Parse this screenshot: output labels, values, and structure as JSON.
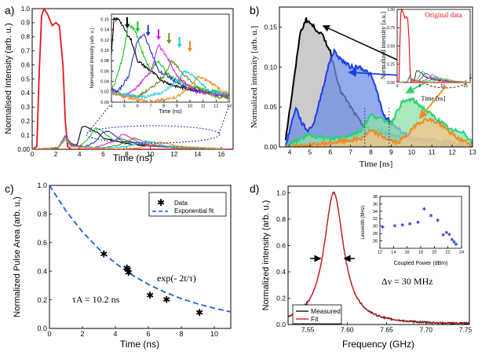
{
  "figure": {
    "panel_labels": [
      "a)",
      "b)",
      "c)",
      "d)"
    ]
  },
  "chart_data": [
    {
      "panel": "a)",
      "type": "line",
      "xlabel": "Time (ns)",
      "ylabel": "Normalised Intensity (arb. u.)",
      "xlim": [
        0,
        17
      ],
      "ylim": [
        0,
        1.0
      ],
      "xticks": [
        0,
        2,
        4,
        6,
        8,
        10,
        12,
        14,
        16
      ],
      "yticks": [
        0.0,
        0.1,
        0.2,
        0.3,
        0.4,
        0.5,
        0.6,
        0.7,
        0.8,
        0.9,
        1.0
      ],
      "ytick_labels": [
        "0.00",
        "0.1",
        "0.2",
        "0.3",
        "0.4",
        "0.5",
        "0.6",
        "0.7",
        "0.8",
        "0.9",
        "1.0"
      ],
      "series": [
        {
          "name": "input pulse",
          "color": "#e8141c",
          "x": [
            0,
            0.4,
            0.6,
            0.8,
            1.0,
            1.3,
            1.7,
            2.0,
            2.3,
            2.6,
            2.8,
            3.0,
            3.3,
            4.0,
            17
          ],
          "y": [
            0,
            0.02,
            0.55,
            0.95,
            1.0,
            0.96,
            0.88,
            0.9,
            0.88,
            0.6,
            0.2,
            0.02,
            0,
            0,
            0
          ]
        },
        {
          "name": "black",
          "color": "#000000",
          "x": [
            0,
            2.2,
            2.8,
            3.3,
            3.8,
            4.2,
            4.6,
            5.0,
            5.5,
            6.0,
            6.5,
            7.0,
            8.0,
            9.0,
            11.0,
            13.0,
            16.5
          ],
          "y": [
            0.0,
            0.01,
            0.1,
            0.04,
            0.03,
            0.16,
            0.16,
            0.14,
            0.12,
            0.08,
            0.07,
            0.06,
            0.04,
            0.03,
            0.02,
            0.01,
            0.0
          ]
        },
        {
          "name": "green",
          "color": "#1fc21f",
          "x": [
            0,
            2.2,
            2.8,
            3.3,
            4.0,
            4.8,
            5.3,
            5.8,
            6.3,
            7.0,
            7.5,
            8.5,
            10.0,
            12.0,
            16.5
          ],
          "y": [
            0.0,
            0.01,
            0.09,
            0.04,
            0.02,
            0.08,
            0.15,
            0.14,
            0.1,
            0.06,
            0.08,
            0.05,
            0.03,
            0.02,
            0.0
          ]
        },
        {
          "name": "blue",
          "color": "#2233cc",
          "x": [
            0,
            2.2,
            2.8,
            3.3,
            4.5,
            5.3,
            6.0,
            6.5,
            7.0,
            7.6,
            8.3,
            9.5,
            11.0,
            16.5
          ],
          "y": [
            0.0,
            0.01,
            0.08,
            0.03,
            0.02,
            0.05,
            0.12,
            0.13,
            0.1,
            0.06,
            0.05,
            0.03,
            0.02,
            0.0
          ]
        },
        {
          "name": "magenta",
          "color": "#e020e0",
          "x": [
            0,
            2.2,
            2.8,
            3.3,
            5.0,
            6.0,
            7.0,
            7.6,
            8.2,
            9.0,
            10.5,
            16.5
          ],
          "y": [
            0.0,
            0.01,
            0.1,
            0.03,
            0.01,
            0.03,
            0.06,
            0.11,
            0.09,
            0.05,
            0.02,
            0.0
          ]
        },
        {
          "name": "olive",
          "color": "#6b8e23",
          "x": [
            0,
            2.2,
            2.8,
            3.3,
            6.0,
            7.2,
            8.0,
            8.6,
            9.3,
            10.5,
            12.0,
            16.5
          ],
          "y": [
            0.0,
            0.01,
            0.09,
            0.02,
            0.01,
            0.03,
            0.05,
            0.08,
            0.06,
            0.03,
            0.01,
            0.0
          ]
        },
        {
          "name": "cyan",
          "color": "#22cce6",
          "x": [
            0,
            2.2,
            2.8,
            3.3,
            6.5,
            8.0,
            9.0,
            9.6,
            10.3,
            11.5,
            16.5
          ],
          "y": [
            0.0,
            0.01,
            0.08,
            0.02,
            0.01,
            0.02,
            0.04,
            0.06,
            0.05,
            0.02,
            0.0
          ]
        },
        {
          "name": "orange",
          "color": "#f08a1e",
          "x": [
            0,
            2.2,
            2.8,
            3.3,
            7.0,
            9.0,
            10.0,
            10.7,
            11.5,
            12.5,
            16.5
          ],
          "y": [
            0.0,
            0.01,
            0.07,
            0.02,
            0.0,
            0.01,
            0.03,
            0.05,
            0.04,
            0.02,
            0.0
          ]
        }
      ],
      "inset": {
        "xlabel": "Time (ns)",
        "ylabel": "Normalised Intensity (arb. u.)",
        "xlim": [
          4,
          13
        ],
        "ylim": [
          0,
          0.17
        ],
        "xticks": [
          4,
          5,
          6,
          7,
          8,
          9,
          10,
          11,
          12,
          13
        ],
        "yticks": [
          0.0,
          0.02,
          0.04,
          0.06,
          0.08,
          0.1,
          0.12,
          0.14,
          0.16
        ],
        "ytick_labels": [
          "0.00",
          "0.02",
          "0.04",
          "0.06",
          "0.08",
          "0.10",
          "0.12",
          "0.14",
          "0.16"
        ],
        "arrows_at_x": [
          5.2,
          6.0,
          6.8,
          7.6,
          8.4,
          9.2,
          10.0
        ]
      }
    },
    {
      "panel": "b)",
      "type": "area",
      "xlabel": "Time [ns]",
      "ylabel": "Normalized intensity [arb. u.]",
      "xlim": [
        3.5,
        13
      ],
      "ylim": [
        0,
        0.175
      ],
      "xticks": [
        4,
        5,
        6,
        7,
        8,
        9,
        10,
        11,
        12,
        13
      ],
      "yticks": [
        0.0,
        0.05,
        0.1,
        0.15
      ],
      "ytick_labels": [
        "0.00",
        "0.05",
        "0.10",
        "0.15"
      ],
      "series": [
        {
          "name": "black",
          "color": "#000000",
          "fill": "#b9b9b9",
          "x": [
            3.8,
            4.2,
            4.5,
            4.8,
            5.2,
            5.6,
            6.0,
            6.5,
            7.0,
            7.5,
            8.0,
            8.5,
            9.0,
            10.0,
            11.0,
            12.0,
            13.0
          ],
          "y": [
            0.01,
            0.08,
            0.14,
            0.16,
            0.15,
            0.14,
            0.12,
            0.07,
            0.05,
            0.03,
            0.02,
            0.02,
            0.015,
            0.01,
            0.008,
            0.005,
            0.0
          ]
        },
        {
          "name": "blue",
          "color": "#1a3ee8",
          "fill": "#6e8fe6",
          "x": [
            3.8,
            4.3,
            4.6,
            4.9,
            5.2,
            5.6,
            6.0,
            6.2,
            6.5,
            7.0,
            7.5,
            8.0,
            8.3,
            8.6,
            9.0,
            9.5,
            10.0,
            11.0,
            12.0,
            13.0
          ],
          "y": [
            0.0,
            0.05,
            0.03,
            0.02,
            0.03,
            0.07,
            0.11,
            0.12,
            0.11,
            0.1,
            0.1,
            0.09,
            0.07,
            0.04,
            0.03,
            0.02,
            0.01,
            0.005,
            0.002,
            0.0
          ]
        },
        {
          "name": "green",
          "color": "#2bd16e",
          "fill": "#8fe0a8",
          "x": [
            3.8,
            4.5,
            5.0,
            6.0,
            7.0,
            7.5,
            8.0,
            8.5,
            9.0,
            9.5,
            10.0,
            10.5,
            11.0,
            11.5,
            12.0,
            12.5,
            13.0
          ],
          "y": [
            0.0,
            0.01,
            0.015,
            0.01,
            0.015,
            0.02,
            0.04,
            0.035,
            0.03,
            0.055,
            0.06,
            0.05,
            0.04,
            0.03,
            0.02,
            0.02,
            0.005
          ]
        },
        {
          "name": "orange",
          "color": "#f08a1e",
          "fill": "#f7c48a",
          "x": [
            3.8,
            5.0,
            6.0,
            7.5,
            8.0,
            8.8,
            9.3,
            9.8,
            10.3,
            10.8,
            11.3,
            11.8,
            12.3,
            12.8,
            13.0
          ],
          "y": [
            0.0,
            0.002,
            0.005,
            0.01,
            0.02,
            0.01,
            0.005,
            0.015,
            0.03,
            0.035,
            0.03,
            0.02,
            0.01,
            0.005,
            0.0
          ]
        }
      ],
      "inset": {
        "xlabel": "Time [ns]",
        "ylabel": "Normalized intensity [a.u.]",
        "xlim": [
          0,
          16
        ],
        "ylim": [
          0,
          1.0
        ],
        "xticks": [
          0,
          5,
          10,
          15
        ],
        "yticks": [
          0.0,
          0.25,
          0.5,
          0.75,
          1.0
        ],
        "ytick_labels": [
          "0.00",
          "0.25",
          "0.50",
          "0.75",
          "1.00"
        ],
        "annotation": "Original data"
      }
    },
    {
      "panel": "c)",
      "type": "scatter",
      "xlabel": "Time (ns)",
      "ylabel": "Normalized  Pulse Area (arb. u.)",
      "xlim": [
        0,
        11
      ],
      "ylim": [
        0,
        1.0
      ],
      "xticks": [
        0,
        2,
        4,
        6,
        8,
        10
      ],
      "yticks": [
        0.0,
        0.2,
        0.4,
        0.6,
        0.8,
        1.0
      ],
      "ytick_labels": [
        "0.0",
        "0.2",
        "0.4",
        "0.6",
        "0.8",
        "1.0"
      ],
      "series": [
        {
          "name": "Data",
          "marker": "star",
          "x": [
            3.3,
            4.7,
            4.75,
            4.8,
            6.1,
            7.1,
            9.1
          ],
          "y": [
            0.52,
            0.42,
            0.41,
            0.39,
            0.23,
            0.2,
            0.11
          ]
        },
        {
          "name": "Exponential fit",
          "style": "dashed",
          "color": "#1f5fd6",
          "x": [
            0,
            1,
            2,
            3,
            4,
            5,
            6,
            7,
            8,
            9,
            10,
            11
          ],
          "y": [
            1.0,
            0.822,
            0.676,
            0.555,
            0.456,
            0.375,
            0.308,
            0.254,
            0.208,
            0.171,
            0.141,
            0.116
          ]
        }
      ],
      "legend": [
        "Data",
        "Exponential fit"
      ],
      "annotations": [
        "exp(- 2t/τ)",
        "τA = 10.2 ns"
      ]
    },
    {
      "panel": "d)",
      "type": "line",
      "xlabel": "Frequency (GHz)",
      "ylabel": "Normalized intensity (arb. u.)",
      "xlim": [
        7.525,
        7.755
      ],
      "ylim": [
        0,
        1.05
      ],
      "xticks": [
        7.55,
        7.6,
        7.65,
        7.7,
        7.75
      ],
      "xtick_labels": [
        "7.55",
        "7.60",
        "7.65",
        "7.70",
        "7.75"
      ],
      "yticks": [
        0.0,
        0.2,
        0.4,
        0.6,
        0.8,
        1.0
      ],
      "ytick_labels": [
        "0.0",
        "0.2",
        "0.4",
        "0.6",
        "0.8",
        "1.0"
      ],
      "center": 7.583,
      "fwhm": 0.03,
      "series": [
        {
          "name": "Measured",
          "color": "#111111"
        },
        {
          "name": "Fit",
          "color": "#e8141c"
        }
      ],
      "legend": [
        "Measured",
        "Fit"
      ],
      "annotation": "Δν = 30 MHz",
      "inset": {
        "type": "scatter",
        "xlabel": "Coupled Power (dBm)",
        "ylabel": "Linewidth (MHz)",
        "xlim": [
          12,
          24
        ],
        "ylim": [
          24,
          38
        ],
        "xticks": [
          12,
          14,
          16,
          18,
          20,
          22,
          24
        ],
        "yticks": [
          26,
          28,
          30,
          32,
          34,
          36,
          38
        ],
        "x": [
          12.4,
          14.2,
          15.3,
          16.4,
          17.6,
          18.5,
          19.5,
          20.5,
          21.3,
          21.8,
          22.2,
          22.6,
          22.9,
          23.2
        ],
        "y": [
          29.7,
          30.0,
          30.3,
          30.6,
          31.0,
          34.6,
          32.8,
          31.5,
          27.6,
          28.2,
          27.7,
          26.3,
          25.7,
          25.1
        ]
      }
    }
  ]
}
